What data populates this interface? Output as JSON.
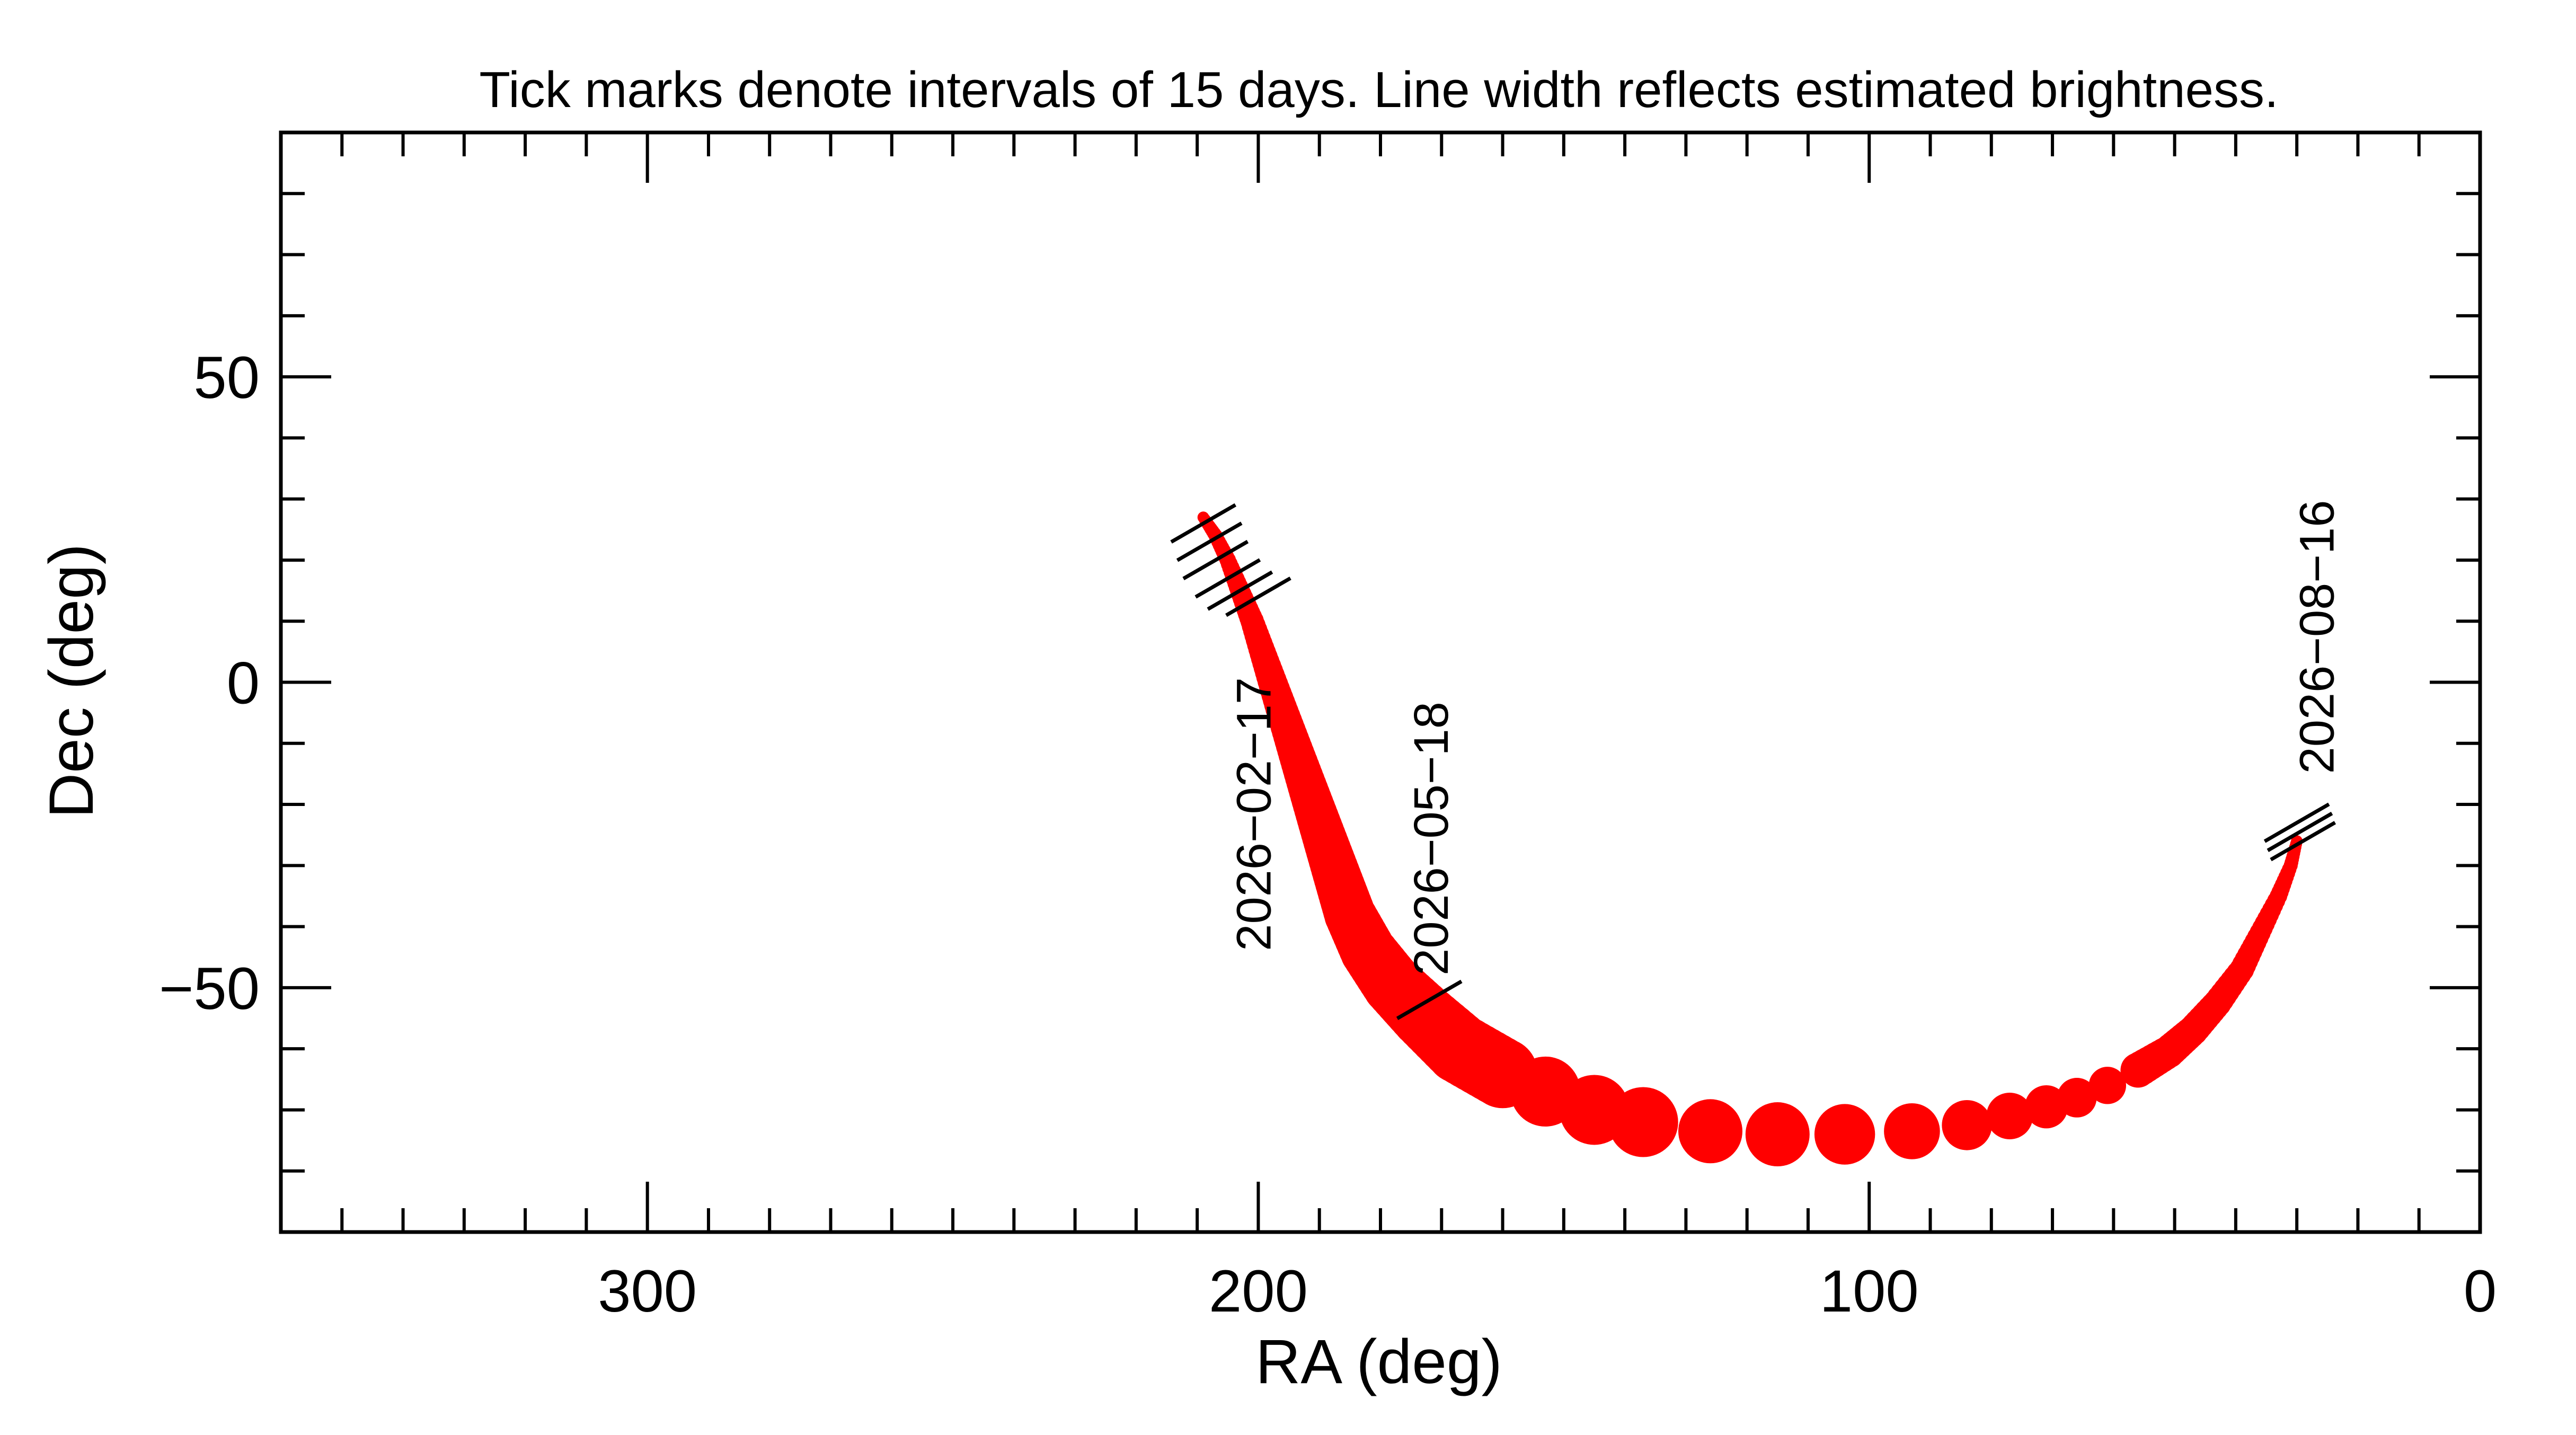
{
  "chart_data": {
    "type": "scatter",
    "title": "Tick marks denote intervals of 15 days.  Line width reflects estimated brightness.",
    "xlabel": "RA (deg)",
    "ylabel": "Dec (deg)",
    "xlim": [
      360,
      0
    ],
    "ylim": [
      -90,
      90
    ],
    "x_ticks": [
      300,
      200,
      100,
      0
    ],
    "x_tick_labels": [
      "300",
      "200",
      "100",
      "0"
    ],
    "y_ticks": [
      50,
      0,
      -50
    ],
    "y_tick_labels": [
      "50",
      "0",
      "−50"
    ],
    "grid": false,
    "colors": {
      "track": "#ff0000",
      "ink": "#000000"
    },
    "track": [
      {
        "ra": 209,
        "dec": 27,
        "size": 1.0
      },
      {
        "ra": 207,
        "dec": 24,
        "size": 1.2
      },
      {
        "ra": 205,
        "dec": 20,
        "size": 1.4
      },
      {
        "ra": 203,
        "dec": 15,
        "size": 1.7
      },
      {
        "ra": 201,
        "dec": 10,
        "size": 2.0
      },
      {
        "ra": 199,
        "dec": 4,
        "size": 2.3
      },
      {
        "ra": 197,
        "dec": -2,
        "size": 2.6
      },
      {
        "ra": 195,
        "dec": -8,
        "size": 2.9
      },
      {
        "ra": 193,
        "dec": -14,
        "size": 3.2
      },
      {
        "ra": 191,
        "dec": -20,
        "size": 3.5
      },
      {
        "ra": 189,
        "dec": -26,
        "size": 3.8
      },
      {
        "ra": 187,
        "dec": -32,
        "size": 4.1
      },
      {
        "ra": 185,
        "dec": -38,
        "size": 4.4
      },
      {
        "ra": 182,
        "dec": -44,
        "size": 4.8
      },
      {
        "ra": 178,
        "dec": -49.5,
        "size": 5.2
      },
      {
        "ra": 173,
        "dec": -54.5,
        "size": 5.6
      },
      {
        "ra": 167,
        "dec": -60,
        "size": 6.0
      },
      {
        "ra": 160,
        "dec": -64,
        "size": 6.0
      },
      {
        "ra": 153,
        "dec": -67,
        "size": 6.0
      },
      {
        "ra": 145,
        "dec": -70,
        "size": 6.0
      },
      {
        "ra": 137,
        "dec": -72,
        "size": 6.0
      },
      {
        "ra": 126,
        "dec": -73.5,
        "size": 5.5
      },
      {
        "ra": 115,
        "dec": -74,
        "size": 5.5
      },
      {
        "ra": 104,
        "dec": -74,
        "size": 5.2
      },
      {
        "ra": 93,
        "dec": -73.5,
        "size": 4.8
      },
      {
        "ra": 84,
        "dec": -72.5,
        "size": 4.3
      },
      {
        "ra": 77,
        "dec": -71,
        "size": 4.0
      },
      {
        "ra": 71,
        "dec": -69.5,
        "size": 3.7
      },
      {
        "ra": 66,
        "dec": -68,
        "size": 3.4
      },
      {
        "ra": 61,
        "dec": -66,
        "size": 3.2
      },
      {
        "ra": 56,
        "dec": -63.5,
        "size": 3.0
      },
      {
        "ra": 51,
        "dec": -60.5,
        "size": 2.8
      },
      {
        "ra": 47,
        "dec": -57,
        "size": 2.6
      },
      {
        "ra": 43,
        "dec": -52.5,
        "size": 2.4
      },
      {
        "ra": 39,
        "dec": -47,
        "size": 2.1
      },
      {
        "ra": 36,
        "dec": -41,
        "size": 1.8
      },
      {
        "ra": 33,
        "dec": -35,
        "size": 1.5
      },
      {
        "ra": 31,
        "dec": -30,
        "size": 1.2
      },
      {
        "ra": 30,
        "dec": -26,
        "size": 1.0
      }
    ],
    "tick_marks": [
      {
        "ra": 209,
        "dec": 26
      },
      {
        "ra": 208,
        "dec": 23
      },
      {
        "ra": 207,
        "dec": 20
      },
      {
        "ra": 205,
        "dec": 17
      },
      {
        "ra": 203,
        "dec": 15
      },
      {
        "ra": 200,
        "dec": 14
      },
      {
        "ra": 172,
        "dec": -52
      },
      {
        "ra": 30,
        "dec": -23
      },
      {
        "ra": 29.5,
        "dec": -24.5
      },
      {
        "ra": 29,
        "dec": -26
      }
    ],
    "annotations": [
      {
        "text": "2026−02−17",
        "ra": 198,
        "dec": -44
      },
      {
        "text": "2026−05−18",
        "ra": 169,
        "dec": -48
      },
      {
        "text": "2026−08−16",
        "ra": 24,
        "dec": -15
      }
    ]
  }
}
